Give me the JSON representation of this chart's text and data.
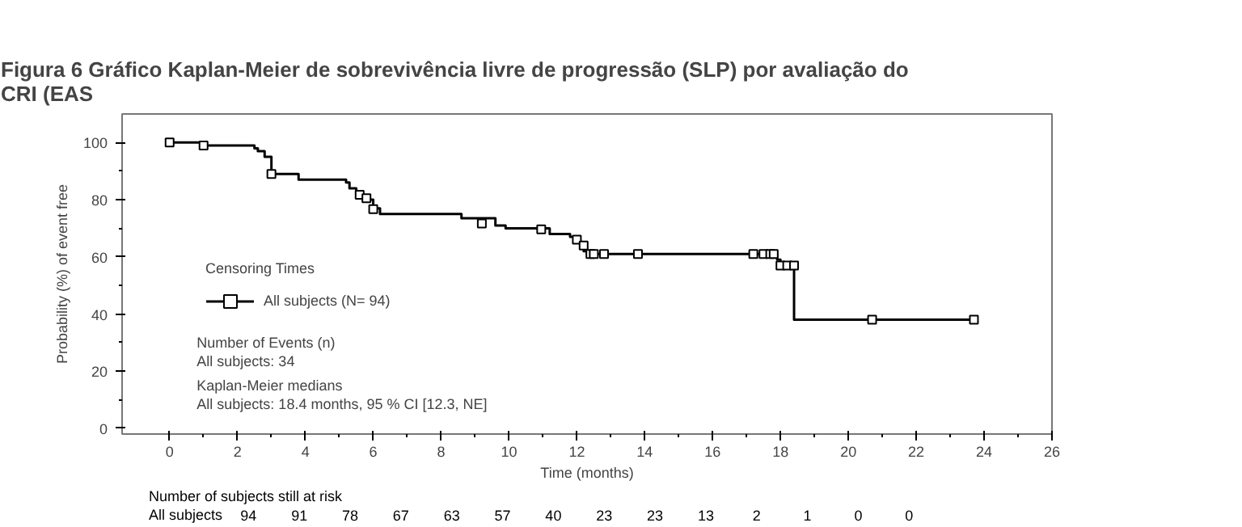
{
  "chart_data": {
    "type": "step",
    "title": "Figura 6 Gráfico Kaplan-Meier de sobrevivência livre de progressão (SLP) por avaliação do\nCRI (EAS",
    "xlabel": "Time (months)",
    "ylabel": "Probability (%) of event free",
    "legend_title": "Censoring Times",
    "legend": "bottom left",
    "xlim": [
      -1.4,
      26
    ],
    "xticks": [
      0,
      2,
      4,
      6,
      8,
      10,
      12,
      14,
      16,
      18,
      20,
      22,
      24,
      26
    ],
    "ylim": [
      -2,
      110
    ],
    "yticks": [
      0,
      20,
      40,
      60,
      80,
      100
    ],
    "grid": false,
    "series": [
      {
        "name": "All subjects (N= 94)",
        "color": "#000000",
        "x": [
          0,
          1.0,
          2.5,
          2.6,
          2.8,
          3.0,
          3.8,
          5.2,
          5.3,
          5.5,
          5.7,
          6.0,
          6.2,
          8.6,
          9.6,
          9.9,
          11.2,
          11.8,
          12.0,
          12.1,
          12.2,
          12.3,
          17.9,
          18.0,
          18.4,
          23.7
        ],
        "values": [
          100,
          99,
          98,
          97,
          95,
          89,
          87,
          86,
          84,
          82,
          80,
          77,
          75,
          73.5,
          71,
          70,
          68,
          67,
          66,
          64,
          62,
          61,
          59,
          57,
          38,
          38
        ]
      },
      {
        "type": "scatter",
        "marker": "square",
        "color": "#000000",
        "x": [
          0,
          1.0,
          3.0,
          5.6,
          5.8,
          6.0,
          9.2,
          10.95,
          12.0,
          12.2,
          12.4,
          12.5,
          12.8,
          13.8,
          17.2,
          17.5,
          17.7,
          17.8,
          18.0,
          18.2,
          18.4,
          20.7,
          23.7
        ],
        "values": [
          100,
          99,
          89,
          81.7,
          80.5,
          76.7,
          71.7,
          69.6,
          66,
          64,
          61,
          61,
          61,
          61,
          61,
          61,
          61,
          61,
          57,
          57,
          57,
          38,
          38
        ]
      }
    ],
    "annotations": [
      "Number of Events (n)",
      "All subjects: 34",
      "Kaplan-Meier medians",
      "All subjects: 18.4 months, 95 % CI [12.3, NE]",
      "Number of subjects still at risk",
      "All subjects",
      "94",
      "91",
      "78",
      "67",
      "63",
      "57",
      "40",
      "23",
      "23",
      "13",
      "2",
      "1",
      "0",
      "0"
    ]
  }
}
